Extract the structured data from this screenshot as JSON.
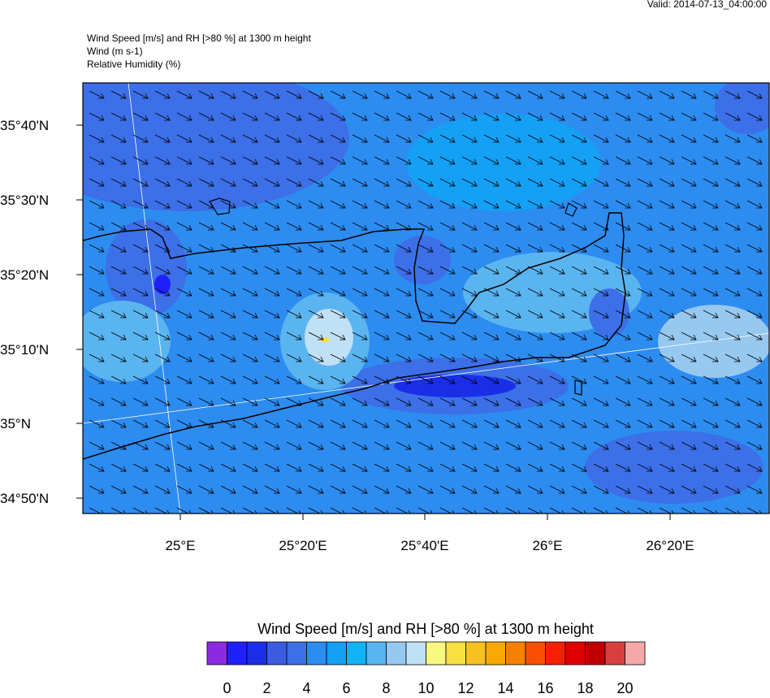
{
  "header": {
    "valid": "Valid: 2014-07-13_04:00:00",
    "lines": [
      "Wind Speed [m/s] and RH [>80 %] at 1300 m height",
      "Wind   (m s-1)",
      "Relative Humidity   (%)"
    ]
  },
  "map": {
    "lat_labels": [
      "35°40'N",
      "35°30'N",
      "35°20'N",
      "35°10'N",
      "35°N",
      "34°50'N"
    ],
    "lon_labels": [
      "25°E",
      "25°20'E",
      "25°40'E",
      "26°E",
      "26°20'E"
    ]
  },
  "colorbar": {
    "title": "Wind Speed [m/s] and RH [>80 %] at 1300 m height",
    "colors": [
      "#8a2be2",
      "#2020ff",
      "#1a2ee8",
      "#3b5ce0",
      "#3c6fe8",
      "#2d8cf0",
      "#14a0f5",
      "#10b4f5",
      "#5ab4f0",
      "#96c8f0",
      "#c0e0f5",
      "#f8f880",
      "#f8e040",
      "#f8c020",
      "#f8a800",
      "#f88000",
      "#f85000",
      "#f82000",
      "#e00000",
      "#c00000",
      "#d84040",
      "#f4a8a8"
    ],
    "ticks": [
      0,
      2,
      4,
      6,
      8,
      10,
      12,
      14,
      16,
      18,
      20
    ]
  }
}
